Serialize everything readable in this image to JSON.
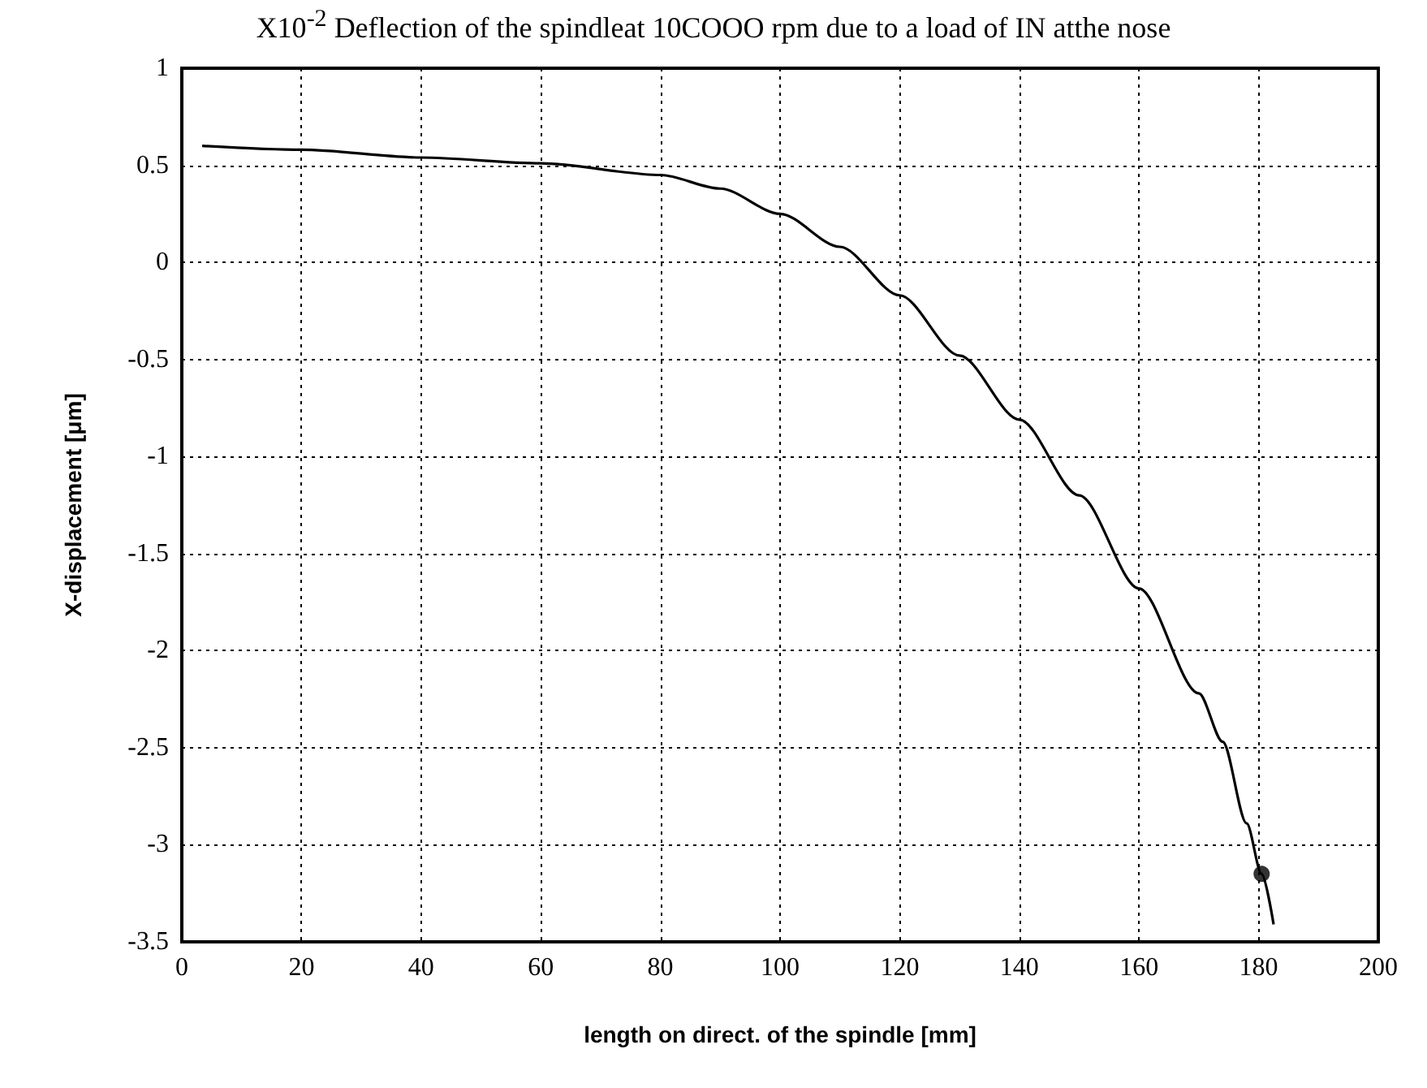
{
  "chart_data": {
    "type": "line",
    "title": "X10$^{-2}$ Deflection of the spindleat 10COOO rpm due to a load of IN atthe nose",
    "xlabel": "length on direct. of the spindle [mm]",
    "ylabel": "X-displacement [μm]",
    "series": [
      {
        "color": "#000000",
        "marker": "none",
        "x": [
          3.4,
          20,
          40,
          60,
          80,
          90,
          100,
          110,
          120,
          130,
          140,
          150,
          160,
          170,
          174,
          178,
          180.5,
          182.5
        ],
        "values": [
          0.6,
          0.58,
          0.54,
          0.51,
          0.45,
          0.38,
          0.25,
          0.08,
          -0.17,
          -0.48,
          -0.81,
          -1.2,
          -1.68,
          -2.22,
          -2.47,
          -2.89,
          -3.15,
          -3.41
        ]
      },
      {
        "type": "scatter",
        "color": "#000000",
        "marker": "circle",
        "x": [
          180.5
        ],
        "values": [
          -3.15
        ]
      }
    ],
    "xlim": [
      0,
      200
    ],
    "xticks": [
      0,
      20,
      40,
      60,
      80,
      100,
      120,
      140,
      160,
      180,
      200
    ],
    "ylim": [
      -3.5,
      1
    ],
    "yticks": [
      -3.5,
      -3,
      -2.5,
      -2,
      -1.5,
      -1,
      -0.5,
      0,
      0.5,
      1
    ],
    "grid": true,
    "line_style": "solid"
  }
}
